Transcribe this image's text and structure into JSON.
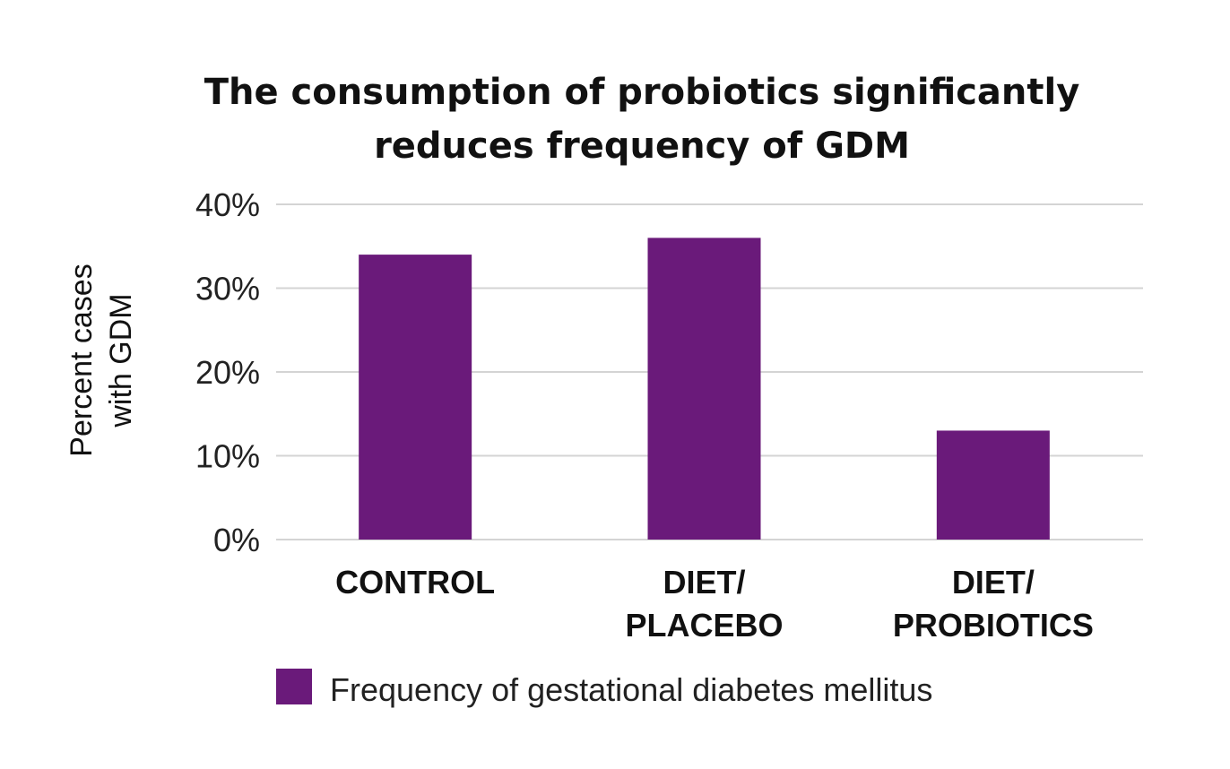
{
  "chart_data": {
    "type": "bar",
    "title": [
      "The consumption of probiotics significantly",
      "reduces frequency of GDM"
    ],
    "ylabel": [
      "Percent cases",
      "with GDM"
    ],
    "xlabel": "",
    "categories": [
      [
        "CONTROL"
      ],
      [
        "DIET/",
        "PLACEBO"
      ],
      [
        "DIET/",
        "PROBIOTICS"
      ]
    ],
    "series": [
      {
        "name": "Frequency of gestational diabetes mellitus",
        "values": [
          34,
          36,
          13
        ],
        "color": "#6a1a7a"
      }
    ],
    "ylim": [
      0,
      40
    ],
    "yticks": [
      0,
      10,
      20,
      30,
      40
    ],
    "ytick_labels": [
      "0%",
      "10%",
      "20%",
      "30%",
      "40%"
    ],
    "grid": true,
    "legend_position": "bottom-center"
  }
}
